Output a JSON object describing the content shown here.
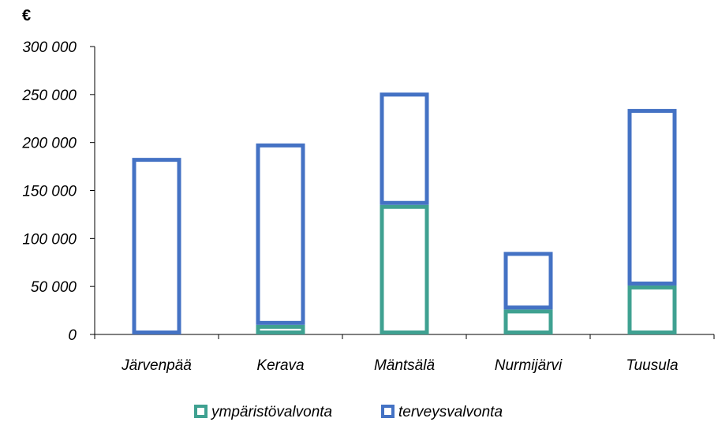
{
  "chart_data": {
    "type": "bar",
    "stacked": true,
    "unit_label": "€",
    "categories": [
      "Järvenpää",
      "Kerava",
      "Mäntsälä",
      "Nurmijärvi",
      "Tuusula"
    ],
    "series": [
      {
        "name": "ympäristövalvonta",
        "values": [
          0,
          10000,
          135000,
          26000,
          51000
        ],
        "color": "#3fa191"
      },
      {
        "name": "terveysvalvonta",
        "values": [
          184000,
          189000,
          117000,
          60000,
          184000
        ],
        "color": "#4472c4"
      }
    ],
    "yticks": [
      "0",
      "50 000",
      "100 000",
      "150 000",
      "200 000",
      "250 000",
      "300 000"
    ],
    "ylim": [
      0,
      300000
    ],
    "grid": false,
    "legend": "bottom",
    "bar_style": "outline"
  }
}
